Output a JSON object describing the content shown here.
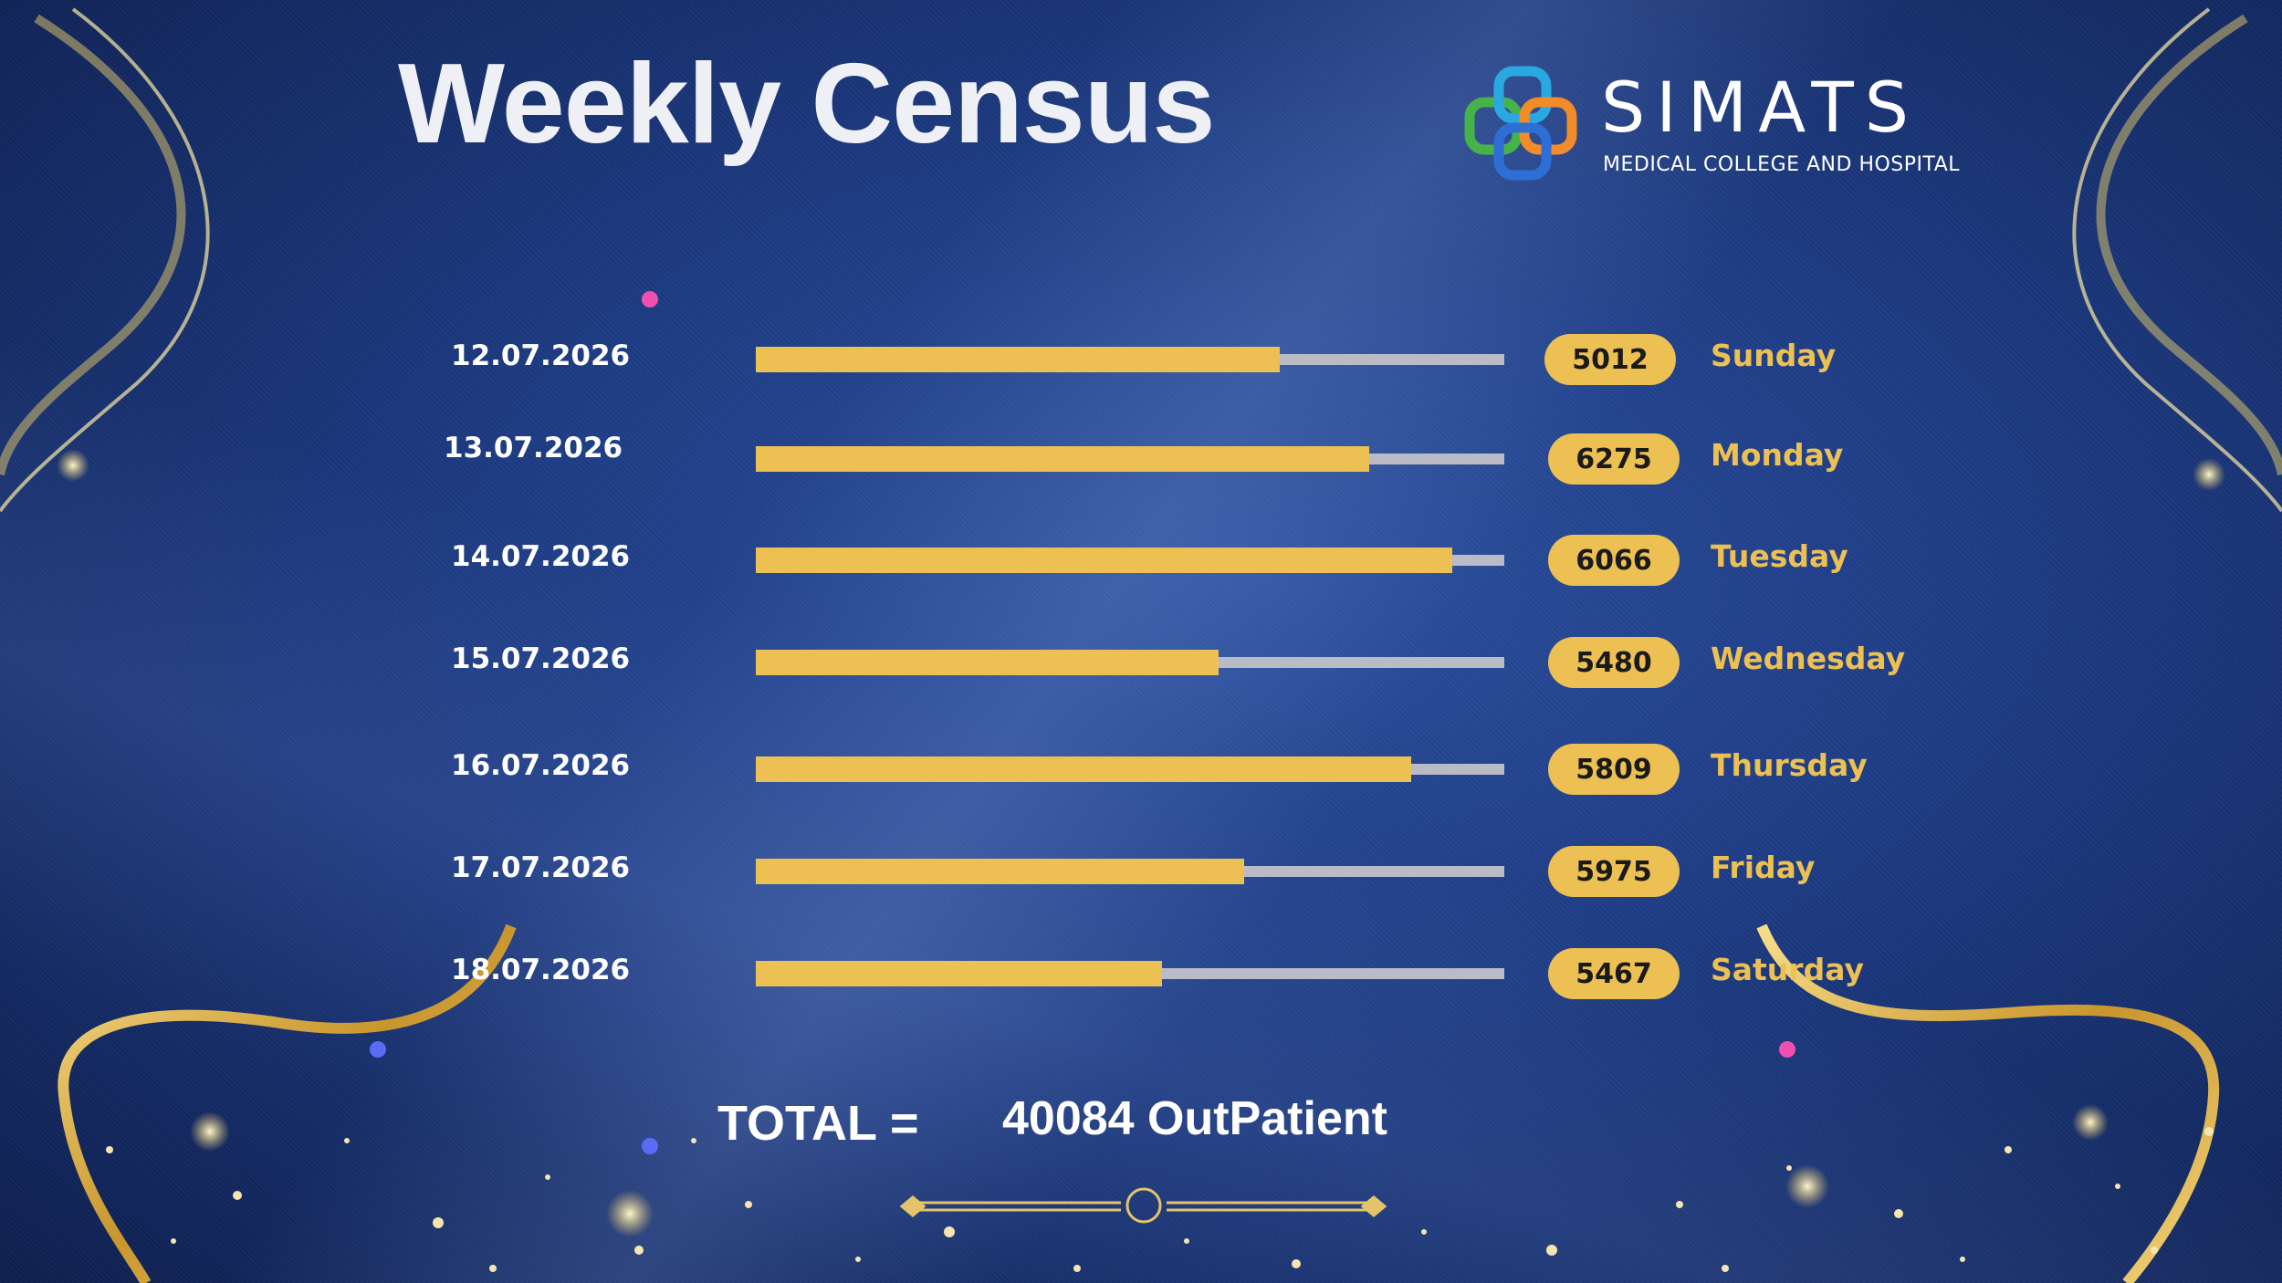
{
  "slide": {
    "title": "Weekly Census",
    "logo": {
      "name": "SIMATS",
      "subtitle": "MEDICAL COLLEGE AND HOSPITAL"
    },
    "total": {
      "label": "TOTAL =",
      "value": "40084 OutPatient"
    }
  },
  "colors": {
    "bar_fill": "#ecc052",
    "bar_track": "#b9bcc6",
    "axis_start": "#f14fb0",
    "axis_end": "#5a6cf3",
    "background": "#1e3d86"
  },
  "chart_data": {
    "type": "bar",
    "orientation": "horizontal",
    "categories": [
      "12.07.2026",
      "13.07.2026",
      "14.07.2026",
      "15.07.2026",
      "16.07.2026",
      "17.07.2026",
      "18.07.2026"
    ],
    "day_labels": [
      "Sunday",
      "Monday",
      "Tuesday",
      "Wednesday",
      "Thursday",
      "Friday",
      "Saturday"
    ],
    "value_labels": [
      "5012",
      "6275",
      "6066",
      "5480",
      "5809",
      "5975",
      "5467"
    ],
    "values": [
      5012,
      6275,
      6066,
      5480,
      5809,
      5975,
      5467
    ],
    "bar_fill_fraction": [
      0.7,
      0.82,
      0.93,
      0.618,
      0.875,
      0.652,
      0.543
    ],
    "grid": false,
    "legend": "none"
  }
}
